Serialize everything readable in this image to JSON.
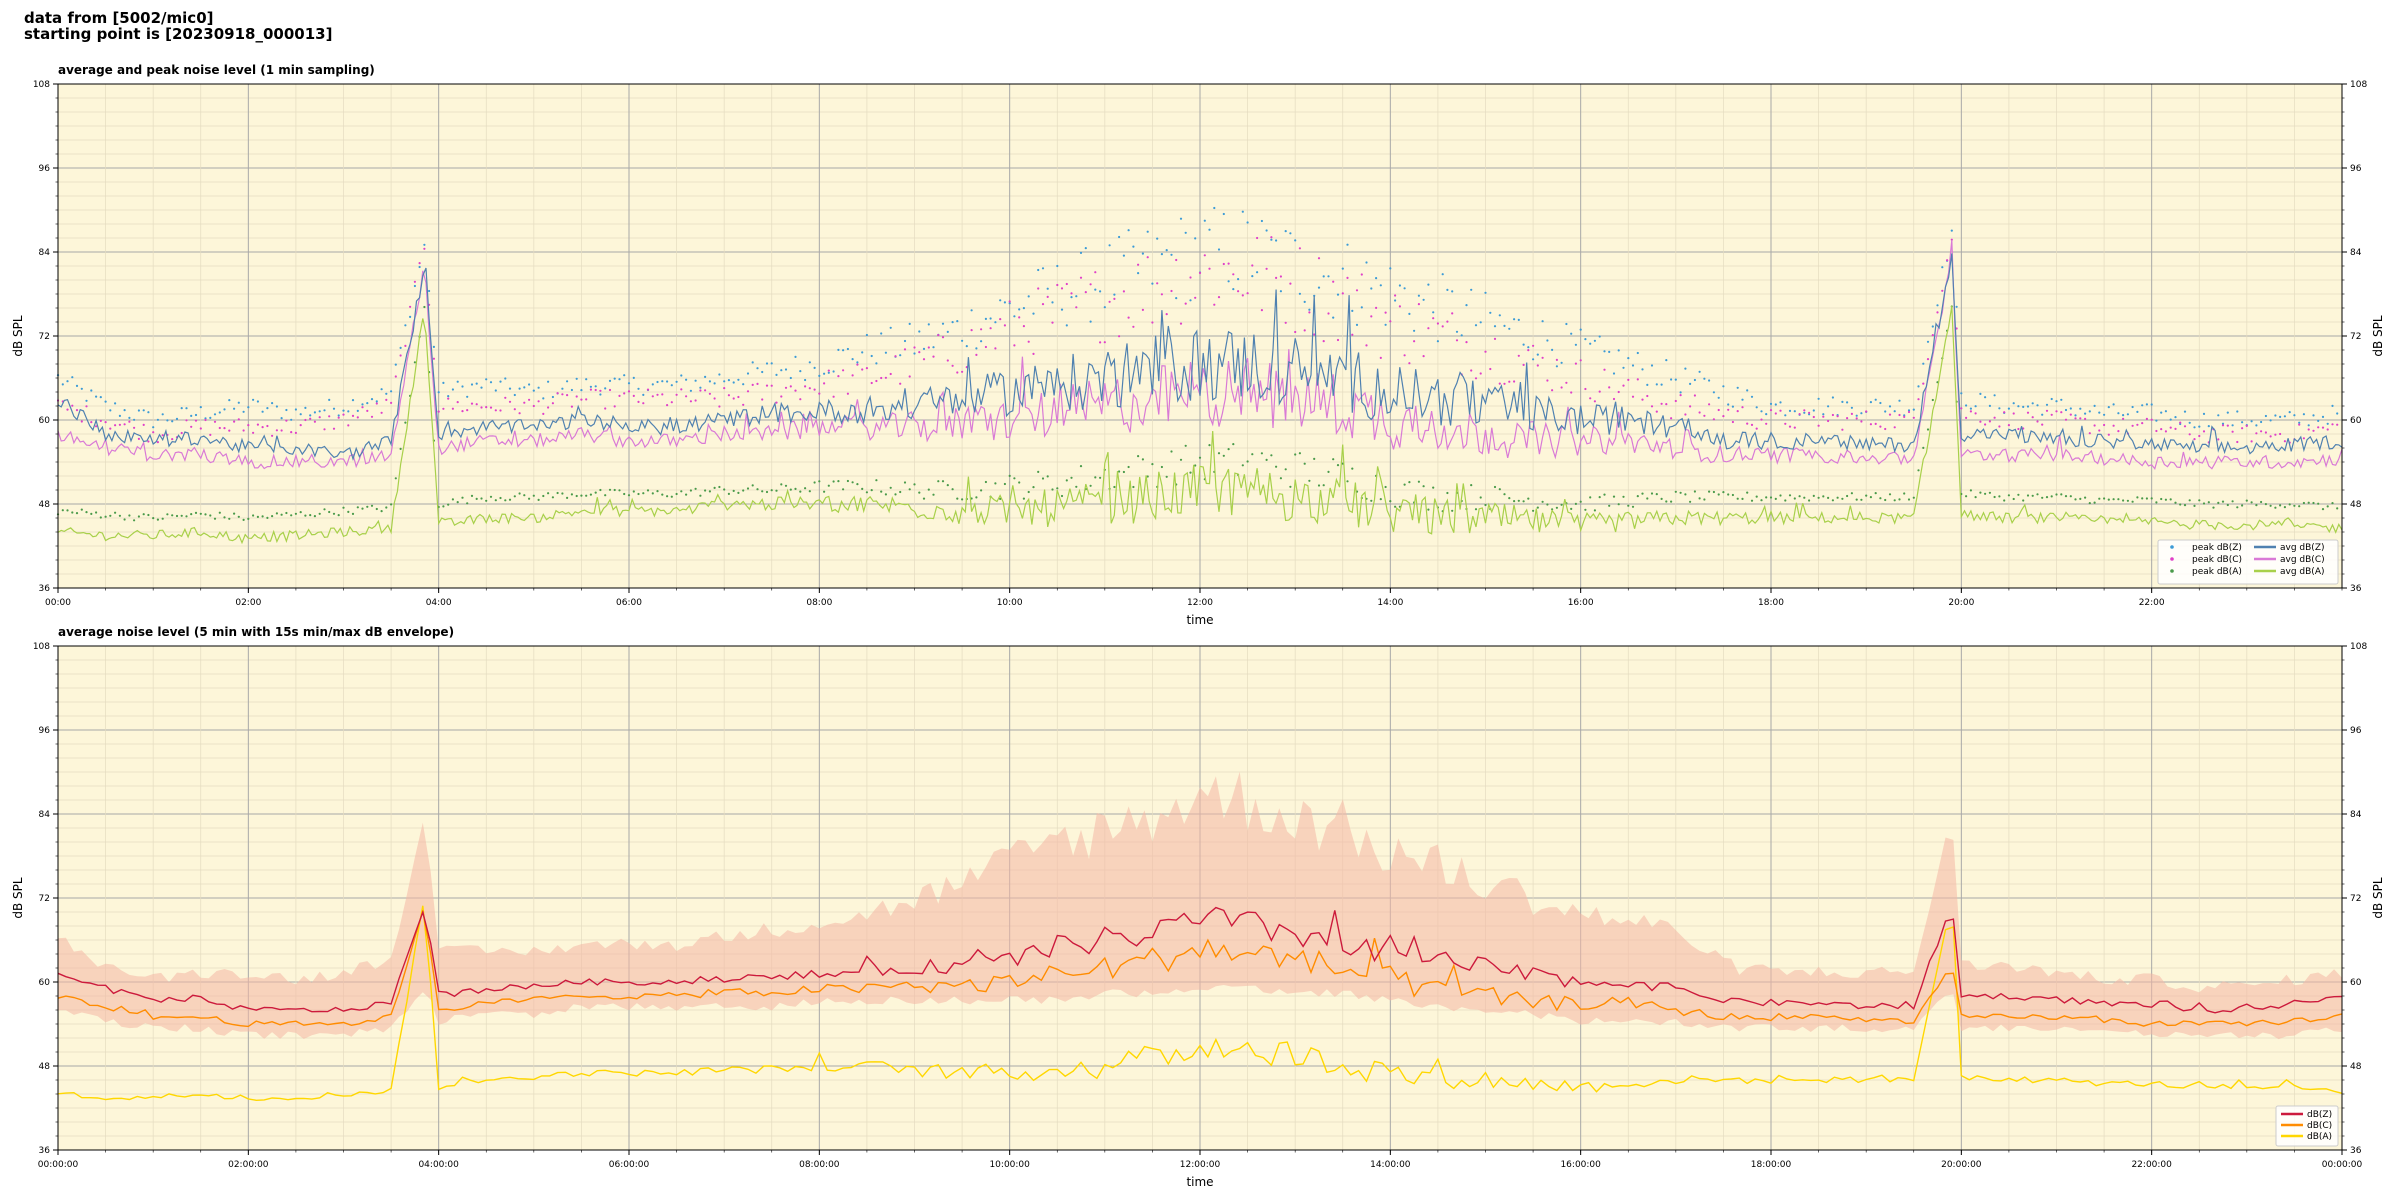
{
  "header": {
    "line1": "data from [5002/mic0]",
    "line2": "starting point is [20230918_000013]"
  },
  "colors": {
    "plot_bg": "#fdf6d9",
    "peak_z": "#3c9bd6",
    "peak_c": "#e040c8",
    "peak_a": "#4a9a4a",
    "avg_z": "#4f81b0",
    "avg_c": "#d97ad6",
    "avg_a": "#a8d04a",
    "db_z": "#cc1a3c",
    "db_c": "#ff8c00",
    "db_a": "#ffd700",
    "envelope": "#f4b6a4"
  },
  "chart_data": [
    {
      "type": "line",
      "title": "average and peak noise level (1 min sampling)",
      "xlabel": "time",
      "ylabel": "dB SPL",
      "ylabel_right": "dB SPL",
      "ylim": [
        36,
        108
      ],
      "xlim_hours": [
        0,
        24
      ],
      "yticks": [
        36,
        48,
        60,
        72,
        84,
        96,
        108
      ],
      "ytick_labels": [
        "36",
        "48",
        "60",
        "72",
        "84",
        "96",
        "108"
      ],
      "xtick_labels": [
        "00:00",
        "02:00",
        "04:00",
        "06:00",
        "08:00",
        "10:00",
        "12:00",
        "14:00",
        "16:00",
        "18:00",
        "20:00",
        "22:00"
      ],
      "grid": true,
      "legend_position": "lower-right",
      "legend": [
        "peak dB(Z)",
        "peak dB(C)",
        "peak dB(A)",
        "avg dB(Z)",
        "avg dB(C)",
        "avg dB(A)"
      ],
      "x_hours": [
        0,
        0.5,
        1,
        1.5,
        2,
        2.5,
        3,
        3.5,
        3.85,
        4,
        4.5,
        5,
        5.5,
        6,
        6.5,
        7,
        7.5,
        8,
        8.5,
        9,
        9.5,
        10,
        10.5,
        11,
        11.5,
        12,
        12.5,
        13,
        13.5,
        14,
        14.5,
        15,
        15.5,
        16,
        16.5,
        17,
        17.5,
        18,
        18.5,
        19,
        19.5,
        19.9,
        20,
        20.5,
        21,
        21.5,
        22,
        22.5,
        23,
        23.5,
        24
      ],
      "series": [
        {
          "name": "avg dB(Z)",
          "style": "line",
          "values": [
            63,
            58,
            57,
            57.5,
            56,
            56,
            55,
            57,
            82,
            58,
            59,
            59,
            60,
            59,
            59,
            60,
            61,
            61,
            61.5,
            62,
            63,
            64,
            65,
            66,
            67,
            68,
            68,
            67,
            66,
            64,
            63,
            62,
            61,
            60,
            60,
            59,
            57,
            57,
            57,
            56.5,
            56.5,
            83,
            58,
            58,
            57,
            57,
            56.5,
            56,
            56,
            56.5,
            57
          ]
        },
        {
          "name": "avg dB(C)",
          "style": "line",
          "values": [
            58,
            56,
            55,
            55,
            54,
            54,
            54,
            55,
            82,
            56,
            57,
            57,
            58,
            57,
            57,
            58,
            58,
            59,
            59,
            59,
            59.5,
            60,
            61,
            62,
            63,
            64,
            64,
            63,
            62,
            60,
            59,
            58,
            57,
            57,
            57,
            56,
            55,
            55,
            55,
            54.5,
            54.5,
            83,
            55,
            55,
            55,
            54.5,
            54,
            54,
            54,
            54,
            54.5
          ]
        },
        {
          "name": "avg dB(A)",
          "style": "line",
          "values": [
            44,
            43.5,
            43.5,
            44,
            43,
            43.5,
            44,
            44.5,
            76,
            45,
            46,
            46,
            47,
            47,
            47,
            48,
            48,
            48,
            48,
            47.5,
            47,
            47,
            47.5,
            48,
            49,
            50,
            50,
            49,
            48,
            47,
            46,
            46,
            45.5,
            45,
            45.5,
            46,
            46,
            46,
            46,
            46,
            46,
            76,
            46.5,
            46,
            46,
            45.5,
            45.5,
            45,
            45,
            45,
            44.5
          ]
        },
        {
          "name": "peak dB(Z)",
          "style": "points",
          "values": [
            66,
            62,
            60,
            61,
            62,
            61,
            62,
            64,
            85,
            64,
            65,
            64,
            65,
            65,
            65,
            66,
            67,
            68,
            70,
            71,
            73,
            76,
            78,
            80,
            82,
            84,
            84,
            82,
            80,
            78,
            76,
            74,
            72,
            70,
            68,
            66,
            64,
            62,
            62,
            62,
            62,
            87,
            63,
            62,
            62,
            61,
            61,
            60,
            60,
            60,
            61
          ]
        },
        {
          "name": "peak dB(C)",
          "style": "points",
          "values": [
            62,
            60,
            58,
            59,
            59,
            59,
            60,
            62,
            85,
            62,
            62,
            62,
            63,
            63,
            63,
            63,
            64,
            65,
            66,
            68,
            70,
            73,
            75,
            77,
            79,
            81,
            81,
            79,
            77,
            74,
            72,
            70,
            68,
            66,
            64,
            62,
            61,
            60,
            60,
            60,
            60,
            86,
            61,
            60,
            60,
            59,
            59,
            58,
            58,
            58,
            59
          ]
        },
        {
          "name": "peak dB(A)",
          "style": "points",
          "values": [
            47,
            46.5,
            46,
            46.5,
            46,
            46.5,
            47,
            47.5,
            76,
            48,
            49,
            49,
            49.5,
            49.5,
            49.5,
            50,
            50,
            50.5,
            50.5,
            50,
            50,
            50.5,
            51,
            52,
            53,
            54,
            54,
            53,
            52,
            50,
            49,
            49,
            48.5,
            48,
            48.5,
            49,
            49,
            49,
            49,
            49,
            49,
            76,
            49.5,
            49,
            49,
            48.5,
            48.5,
            48,
            48,
            48,
            47.5
          ]
        }
      ]
    },
    {
      "type": "line",
      "title": "average noise level (5 min with 15s min/max dB envelope)",
      "xlabel": "time",
      "ylabel": "dB SPL",
      "ylabel_right": "dB SPL",
      "ylim": [
        36,
        108
      ],
      "xlim_hours": [
        0,
        24
      ],
      "yticks": [
        36,
        48,
        60,
        72,
        84,
        96,
        108
      ],
      "ytick_labels": [
        "36",
        "48",
        "60",
        "72",
        "84",
        "96",
        "108"
      ],
      "xtick_labels": [
        "00:00:00",
        "02:00:00",
        "04:00:00",
        "06:00:00",
        "08:00:00",
        "10:00:00",
        "12:00:00",
        "14:00:00",
        "16:00:00",
        "18:00:00",
        "20:00:00",
        "22:00:00",
        "00:00:00"
      ],
      "grid": true,
      "legend_position": "lower-right",
      "legend": [
        "dB(Z)",
        "dB(C)",
        "dB(A)"
      ],
      "x_hours": [
        0,
        0.5,
        1,
        1.5,
        2,
        2.5,
        3,
        3.5,
        3.85,
        4,
        4.5,
        5,
        5.5,
        6,
        6.5,
        7,
        7.5,
        8,
        8.5,
        9,
        9.5,
        10,
        10.5,
        11,
        11.5,
        12,
        12.5,
        13,
        13.5,
        14,
        14.5,
        15,
        15.5,
        16,
        16.5,
        17,
        17.5,
        18,
        18.5,
        19,
        19.5,
        19.9,
        20,
        20.5,
        21,
        21.5,
        22,
        22.5,
        23,
        23.5,
        24
      ],
      "series": [
        {
          "name": "dB(Z)",
          "values": [
            61,
            59,
            57.5,
            57.5,
            56,
            56,
            56,
            57,
            71,
            58,
            59,
            59.5,
            60,
            60,
            60,
            60.5,
            61,
            61,
            61.5,
            62,
            62.5,
            63,
            65,
            66,
            67,
            69,
            68,
            67,
            66,
            64,
            63,
            62,
            61,
            60,
            60,
            59,
            57.5,
            57,
            57,
            56.5,
            56.5,
            71,
            58,
            58,
            57.5,
            57,
            56.5,
            56,
            56,
            57,
            58
          ]
        },
        {
          "name": "dB(C)",
          "values": [
            58,
            56.5,
            55,
            55,
            54,
            54,
            54,
            55,
            71,
            56,
            57,
            57.5,
            58,
            58,
            58,
            58.5,
            58.5,
            59,
            59,
            59.5,
            59.5,
            60,
            61,
            62,
            63,
            65,
            64,
            63,
            62,
            60,
            59,
            58,
            57,
            57,
            57,
            56,
            55,
            55,
            55,
            54.5,
            54.5,
            62,
            55,
            55,
            55,
            54.5,
            54,
            54,
            54,
            54.5,
            55
          ]
        },
        {
          "name": "dB(A)",
          "values": [
            44,
            43.5,
            43.5,
            44,
            43.5,
            43.5,
            44,
            44.5,
            72,
            45,
            46,
            46.5,
            47,
            47,
            47,
            47.5,
            47.5,
            48,
            48,
            47.5,
            47,
            47,
            47.5,
            48,
            49,
            51,
            50.5,
            49.5,
            48.5,
            47,
            46.5,
            46,
            45.5,
            45,
            45.5,
            46,
            46,
            46,
            46,
            46,
            46,
            72,
            46.5,
            46,
            46,
            45.5,
            45.5,
            45,
            45,
            45,
            44.5
          ]
        },
        {
          "name": "envelope max",
          "style": "band",
          "values": [
            66,
            62,
            60,
            61,
            61,
            60,
            61,
            63,
            84,
            64,
            64,
            64,
            65,
            65,
            65,
            66,
            67,
            68,
            69,
            71,
            73,
            76,
            79,
            80,
            82,
            85,
            84,
            82,
            80,
            77,
            75,
            73,
            71,
            69,
            68,
            67,
            62,
            61,
            61,
            61,
            61,
            84,
            62,
            62,
            61,
            60,
            60,
            59,
            59,
            60,
            61
          ]
        },
        {
          "name": "envelope min",
          "style": "band",
          "values": [
            57,
            55,
            54,
            54,
            53,
            53,
            53,
            54,
            60,
            55,
            56,
            56,
            57,
            57,
            57,
            57,
            57,
            58,
            58,
            58,
            58,
            58,
            58,
            59,
            59,
            60,
            60,
            59,
            59,
            58,
            57,
            56,
            56,
            55,
            55,
            55,
            54,
            54,
            54,
            54,
            54,
            60,
            54,
            54,
            54,
            54,
            53,
            53,
            53,
            53,
            54
          ]
        }
      ]
    }
  ]
}
